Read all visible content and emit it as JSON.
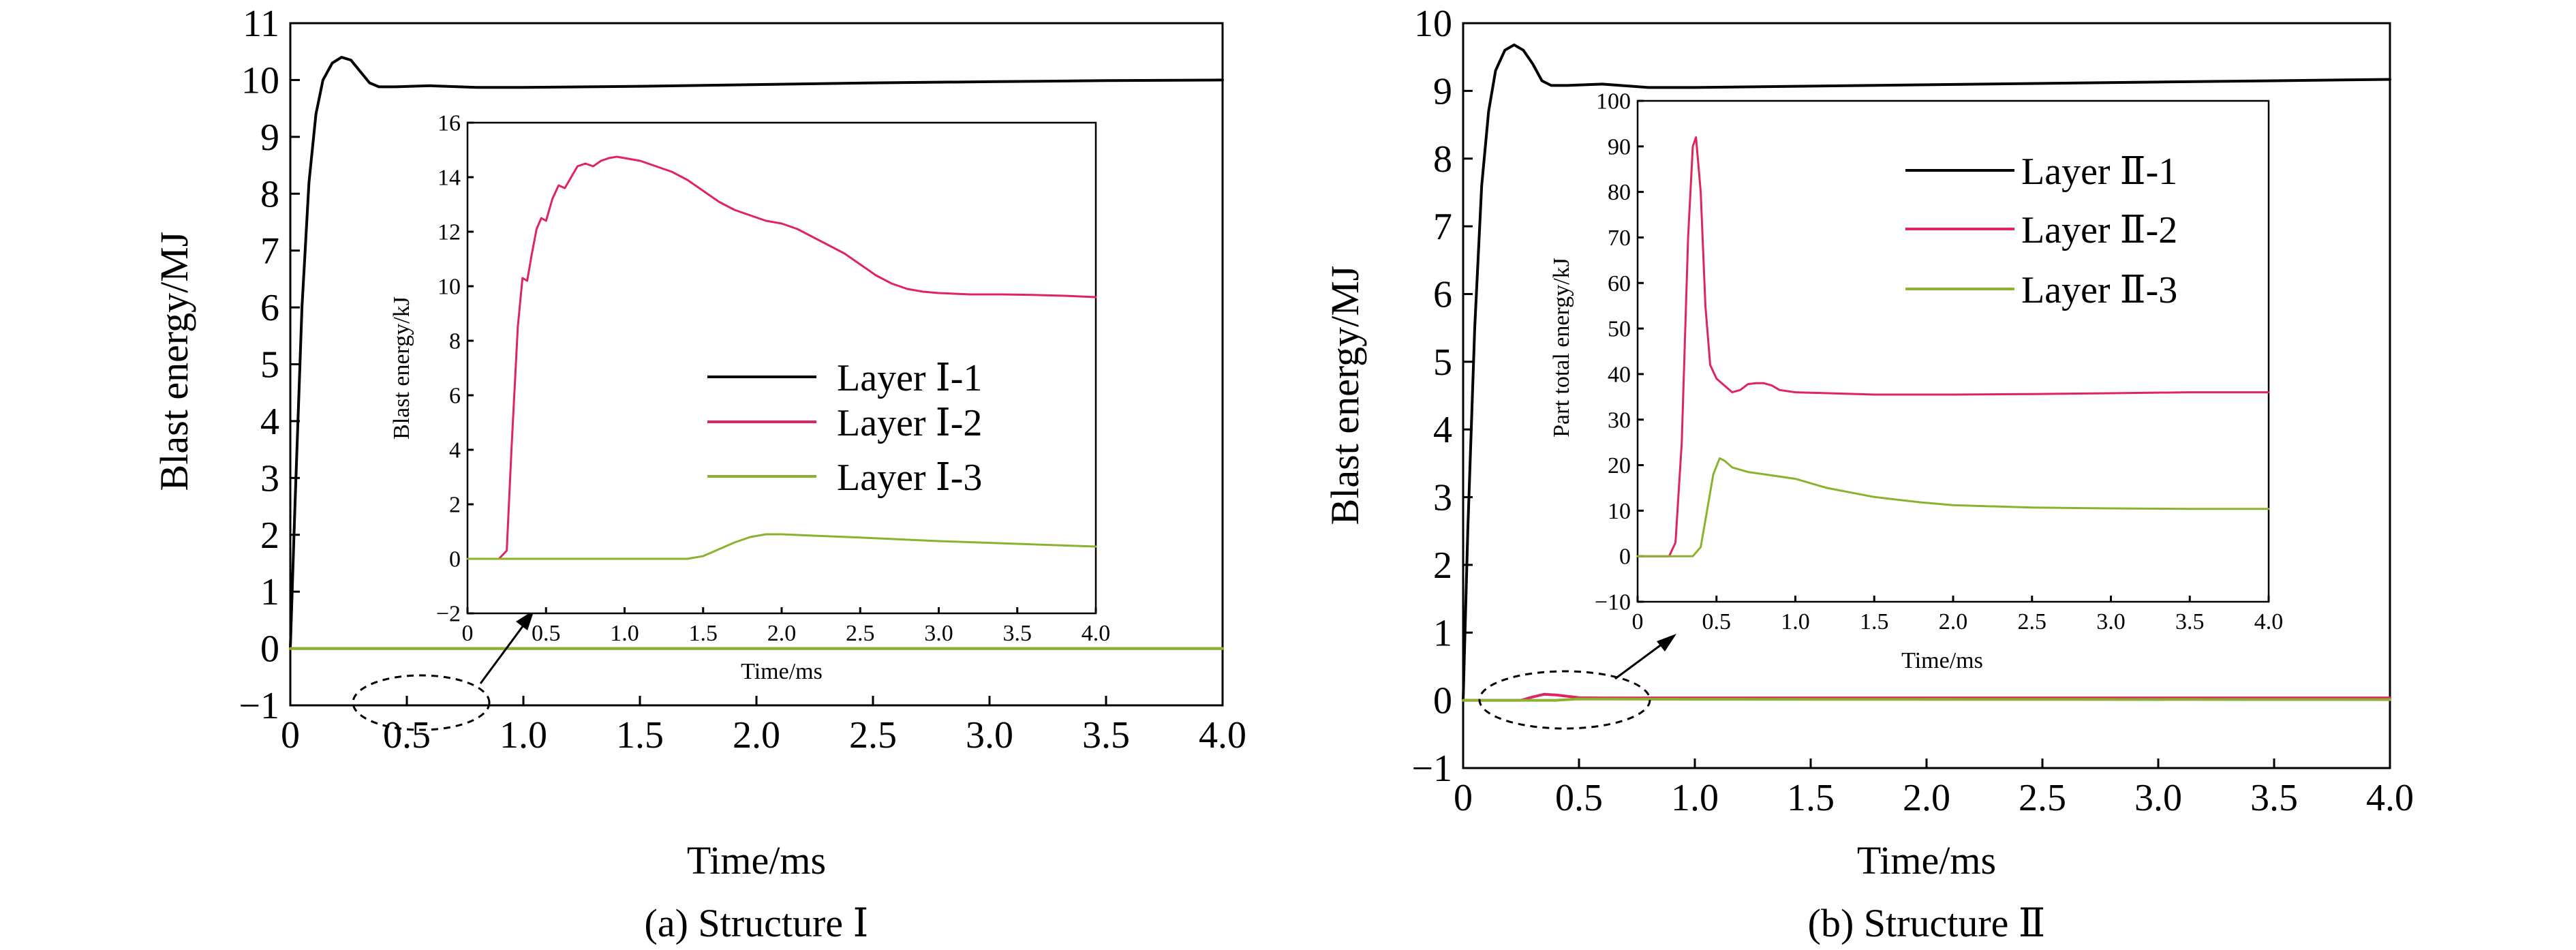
{
  "chart_data": [
    {
      "type": "line",
      "caption": "(a) Structure Ⅰ",
      "xlabel": "Time/ms",
      "ylabel": "Blast energy/MJ",
      "xlim": [
        0,
        4.0
      ],
      "ylim": [
        -1,
        11
      ],
      "x_ticks": [
        "0",
        "0.5",
        "1.0",
        "1.5",
        "2.0",
        "2.5",
        "3.0",
        "3.5",
        "4.0"
      ],
      "y_ticks": [
        "−1",
        "0",
        "1",
        "2",
        "3",
        "4",
        "5",
        "6",
        "7",
        "8",
        "9",
        "10",
        "11"
      ],
      "legend_position": "inside inset, right",
      "series": [
        {
          "name": "Layer Ⅰ-1",
          "color": "#000000",
          "points": [
            [
              0,
              0
            ],
            [
              0.02,
              2.5
            ],
            [
              0.05,
              6
            ],
            [
              0.08,
              8.2
            ],
            [
              0.11,
              9.4
            ],
            [
              0.14,
              10.0
            ],
            [
              0.18,
              10.3
            ],
            [
              0.22,
              10.4
            ],
            [
              0.26,
              10.35
            ],
            [
              0.3,
              10.15
            ],
            [
              0.34,
              9.95
            ],
            [
              0.38,
              9.88
            ],
            [
              0.45,
              9.88
            ],
            [
              0.6,
              9.9
            ],
            [
              0.8,
              9.87
            ],
            [
              1.0,
              9.87
            ],
            [
              1.5,
              9.89
            ],
            [
              2.0,
              9.92
            ],
            [
              2.5,
              9.95
            ],
            [
              3.0,
              9.97
            ],
            [
              3.5,
              9.99
            ],
            [
              4.0,
              10.0
            ]
          ]
        },
        {
          "name": "Layer Ⅰ-2",
          "color": "#e0245e",
          "points": [
            [
              0,
              0
            ],
            [
              4.0,
              0
            ]
          ]
        },
        {
          "name": "Layer Ⅰ-3",
          "color": "#8ab22e",
          "points": [
            [
              0,
              0
            ],
            [
              4.0,
              0
            ]
          ]
        }
      ],
      "callout": {
        "x_center": 0.58,
        "y_center": 0.0
      },
      "inset": {
        "xlabel": "Time/ms",
        "ylabel": "Blast energy/kJ",
        "xlim": [
          0,
          4.0
        ],
        "ylim": [
          -2,
          16
        ],
        "x_ticks": [
          "0",
          "0.5",
          "1.0",
          "1.5",
          "2.0",
          "2.5",
          "3.0",
          "3.5",
          "4.0"
        ],
        "y_ticks": [
          "−2",
          "0",
          "2",
          "4",
          "6",
          "8",
          "10",
          "12",
          "14",
          "16"
        ],
        "series": [
          {
            "name": "Layer Ⅰ-2",
            "color": "#e0245e",
            "points": [
              [
                0,
                0
              ],
              [
                0.2,
                0
              ],
              [
                0.25,
                0.3
              ],
              [
                0.28,
                4
              ],
              [
                0.32,
                8.5
              ],
              [
                0.35,
                10.3
              ],
              [
                0.38,
                10.2
              ],
              [
                0.41,
                11.2
              ],
              [
                0.44,
                12.1
              ],
              [
                0.47,
                12.5
              ],
              [
                0.5,
                12.4
              ],
              [
                0.54,
                13.2
              ],
              [
                0.58,
                13.7
              ],
              [
                0.62,
                13.6
              ],
              [
                0.66,
                14.0
              ],
              [
                0.7,
                14.4
              ],
              [
                0.75,
                14.5
              ],
              [
                0.8,
                14.4
              ],
              [
                0.85,
                14.6
              ],
              [
                0.9,
                14.7
              ],
              [
                0.95,
                14.75
              ],
              [
                1.0,
                14.7
              ],
              [
                1.1,
                14.6
              ],
              [
                1.2,
                14.4
              ],
              [
                1.3,
                14.2
              ],
              [
                1.4,
                13.9
              ],
              [
                1.5,
                13.5
              ],
              [
                1.6,
                13.1
              ],
              [
                1.7,
                12.8
              ],
              [
                1.8,
                12.6
              ],
              [
                1.9,
                12.4
              ],
              [
                2.0,
                12.3
              ],
              [
                2.1,
                12.1
              ],
              [
                2.2,
                11.8
              ],
              [
                2.3,
                11.5
              ],
              [
                2.4,
                11.2
              ],
              [
                2.5,
                10.8
              ],
              [
                2.6,
                10.4
              ],
              [
                2.7,
                10.1
              ],
              [
                2.8,
                9.9
              ],
              [
                2.9,
                9.8
              ],
              [
                3.0,
                9.75
              ],
              [
                3.2,
                9.7
              ],
              [
                3.4,
                9.7
              ],
              [
                3.6,
                9.68
              ],
              [
                3.8,
                9.65
              ],
              [
                4.0,
                9.6
              ]
            ]
          },
          {
            "name": "Layer Ⅰ-3",
            "color": "#8ab22e",
            "points": [
              [
                0,
                0
              ],
              [
                1.0,
                0
              ],
              [
                1.4,
                0
              ],
              [
                1.5,
                0.1
              ],
              [
                1.6,
                0.35
              ],
              [
                1.7,
                0.6
              ],
              [
                1.8,
                0.8
              ],
              [
                1.9,
                0.9
              ],
              [
                2.0,
                0.9
              ],
              [
                2.2,
                0.85
              ],
              [
                2.5,
                0.78
              ],
              [
                3.0,
                0.65
              ],
              [
                3.5,
                0.55
              ],
              [
                4.0,
                0.45
              ]
            ]
          }
        ],
        "legend": [
          {
            "label": "Layer Ⅰ-1",
            "color": "#000000"
          },
          {
            "label": "Layer Ⅰ-2",
            "color": "#e0245e"
          },
          {
            "label": "Layer Ⅰ-3",
            "color": "#8ab22e"
          }
        ]
      }
    },
    {
      "type": "line",
      "caption": "(b) Structure Ⅱ",
      "xlabel": "Time/ms",
      "ylabel": "Blast energy/MJ",
      "xlim": [
        0,
        4.0
      ],
      "ylim": [
        -1,
        10
      ],
      "x_ticks": [
        "0",
        "0.5",
        "1.0",
        "1.5",
        "2.0",
        "2.5",
        "3.0",
        "3.5",
        "4.0"
      ],
      "y_ticks": [
        "−1",
        "0",
        "1",
        "2",
        "3",
        "4",
        "5",
        "6",
        "7",
        "8",
        "9",
        "10"
      ],
      "legend_position": "inside inset, top-right",
      "series": [
        {
          "name": "Layer Ⅱ-1",
          "color": "#000000",
          "points": [
            [
              0,
              0
            ],
            [
              0.02,
              2.5
            ],
            [
              0.05,
              5.5
            ],
            [
              0.08,
              7.6
            ],
            [
              0.11,
              8.7
            ],
            [
              0.14,
              9.3
            ],
            [
              0.18,
              9.6
            ],
            [
              0.22,
              9.68
            ],
            [
              0.26,
              9.6
            ],
            [
              0.3,
              9.4
            ],
            [
              0.34,
              9.15
            ],
            [
              0.38,
              9.08
            ],
            [
              0.45,
              9.08
            ],
            [
              0.6,
              9.1
            ],
            [
              0.8,
              9.05
            ],
            [
              1.0,
              9.05
            ],
            [
              1.5,
              9.07
            ],
            [
              2.0,
              9.09
            ],
            [
              2.5,
              9.11
            ],
            [
              3.0,
              9.13
            ],
            [
              3.5,
              9.15
            ],
            [
              4.0,
              9.17
            ]
          ]
        },
        {
          "name": "Layer Ⅱ-2",
          "color": "#e0245e",
          "points": [
            [
              0,
              0
            ],
            [
              0.25,
              0
            ],
            [
              0.3,
              0.05
            ],
            [
              0.35,
              0.09
            ],
            [
              0.4,
              0.08
            ],
            [
              0.5,
              0.04
            ],
            [
              0.6,
              0.036
            ],
            [
              1.0,
              0.036
            ],
            [
              4.0,
              0.036
            ]
          ]
        },
        {
          "name": "Layer Ⅱ-3",
          "color": "#8ab22e",
          "points": [
            [
              0,
              0
            ],
            [
              0.4,
              0
            ],
            [
              0.5,
              0.02
            ],
            [
              1.0,
              0.015
            ],
            [
              4.0,
              0.01
            ]
          ]
        }
      ],
      "callout": {
        "x_center": 0.55,
        "y_center": 0.0
      },
      "inset": {
        "xlabel": "Time/ms",
        "ylabel": "Part total energy/kJ",
        "xlim": [
          0,
          4.0
        ],
        "ylim": [
          -10,
          100
        ],
        "x_ticks": [
          "0",
          "0.5",
          "1.0",
          "1.5",
          "2.0",
          "2.5",
          "3.0",
          "3.5",
          "4.0"
        ],
        "y_ticks": [
          "−10",
          "0",
          "10",
          "20",
          "30",
          "40",
          "50",
          "60",
          "70",
          "80",
          "90",
          "100"
        ],
        "series": [
          {
            "name": "Layer Ⅱ-2",
            "color": "#e0245e",
            "points": [
              [
                0,
                0
              ],
              [
                0.2,
                0
              ],
              [
                0.24,
                3
              ],
              [
                0.28,
                25
              ],
              [
                0.32,
                70
              ],
              [
                0.35,
                90
              ],
              [
                0.37,
                92
              ],
              [
                0.4,
                80
              ],
              [
                0.43,
                55
              ],
              [
                0.46,
                42
              ],
              [
                0.5,
                39
              ],
              [
                0.55,
                37.5
              ],
              [
                0.6,
                36
              ],
              [
                0.65,
                36.5
              ],
              [
                0.7,
                37.8
              ],
              [
                0.75,
                38
              ],
              [
                0.8,
                38
              ],
              [
                0.85,
                37.5
              ],
              [
                0.9,
                36.5
              ],
              [
                1.0,
                36
              ],
              [
                1.5,
                35.5
              ],
              [
                2.0,
                35.5
              ],
              [
                2.5,
                35.6
              ],
              [
                3.0,
                35.8
              ],
              [
                3.5,
                36
              ],
              [
                4.0,
                36
              ]
            ]
          },
          {
            "name": "Layer Ⅱ-3",
            "color": "#8ab22e",
            "points": [
              [
                0,
                0
              ],
              [
                0.35,
                0
              ],
              [
                0.4,
                2
              ],
              [
                0.44,
                10
              ],
              [
                0.48,
                18
              ],
              [
                0.52,
                21.5
              ],
              [
                0.55,
                21
              ],
              [
                0.6,
                19.5
              ],
              [
                0.7,
                18.5
              ],
              [
                0.8,
                18
              ],
              [
                1.0,
                17
              ],
              [
                1.2,
                15
              ],
              [
                1.5,
                13
              ],
              [
                1.8,
                11.8
              ],
              [
                2.0,
                11.2
              ],
              [
                2.5,
                10.7
              ],
              [
                3.0,
                10.5
              ],
              [
                3.5,
                10.4
              ],
              [
                4.0,
                10.4
              ]
            ]
          }
        ],
        "legend": [
          {
            "label": "Layer Ⅱ-1",
            "color": "#000000"
          },
          {
            "label": "Layer Ⅱ-2",
            "color": "#e0245e"
          },
          {
            "label": "Layer Ⅱ-3",
            "color": "#8ab22e"
          }
        ]
      }
    }
  ]
}
